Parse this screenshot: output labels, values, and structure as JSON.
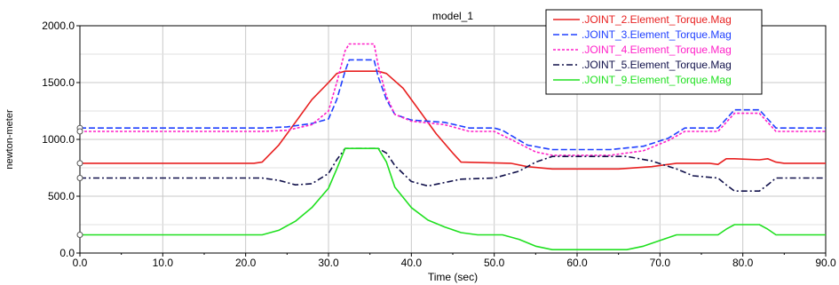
{
  "chart_data": {
    "type": "line",
    "title": "model_1",
    "xlabel": "Time (sec)",
    "ylabel": "newton-meter",
    "xlim": [
      0,
      90
    ],
    "ylim": [
      0,
      2000
    ],
    "x_ticks": [
      "0.0",
      "10.0",
      "20.0",
      "30.0",
      "40.0",
      "50.0",
      "60.0",
      "70.0",
      "80.0",
      "90.0"
    ],
    "y_ticks": [
      "0.0",
      "500.0",
      "1000.0",
      "1500.0",
      "2000.0"
    ],
    "grid": true,
    "legend_position": "top-right",
    "series": [
      {
        "name": ".JOINT_2.Element_Torque.Mag",
        "color": "#e82020",
        "dash": "solid",
        "points": [
          [
            0,
            790
          ],
          [
            21,
            790
          ],
          [
            22,
            800
          ],
          [
            24,
            950
          ],
          [
            26,
            1150
          ],
          [
            28,
            1350
          ],
          [
            30,
            1500
          ],
          [
            31,
            1580
          ],
          [
            32,
            1600
          ],
          [
            36,
            1600
          ],
          [
            37,
            1580
          ],
          [
            39,
            1450
          ],
          [
            41,
            1250
          ],
          [
            43,
            1050
          ],
          [
            45,
            880
          ],
          [
            46,
            800
          ],
          [
            52,
            790
          ],
          [
            54,
            760
          ],
          [
            57,
            740
          ],
          [
            65,
            740
          ],
          [
            69,
            760
          ],
          [
            72,
            790
          ],
          [
            76,
            790
          ],
          [
            77,
            780
          ],
          [
            78,
            830
          ],
          [
            79,
            830
          ],
          [
            82,
            820
          ],
          [
            83,
            830
          ],
          [
            84,
            800
          ],
          [
            85,
            790
          ],
          [
            90,
            790
          ]
        ]
      },
      {
        "name": ".JOINT_3.Element_Torque.Mag",
        "color": "#2040ff",
        "dash": "dashed",
        "points": [
          [
            0,
            1100
          ],
          [
            22,
            1100
          ],
          [
            25,
            1110
          ],
          [
            28,
            1140
          ],
          [
            30,
            1180
          ],
          [
            31,
            1350
          ],
          [
            32,
            1600
          ],
          [
            32.5,
            1700
          ],
          [
            35.5,
            1700
          ],
          [
            36,
            1550
          ],
          [
            37,
            1350
          ],
          [
            38,
            1220
          ],
          [
            40,
            1170
          ],
          [
            44,
            1150
          ],
          [
            47,
            1100
          ],
          [
            50,
            1100
          ],
          [
            51,
            1080
          ],
          [
            54,
            950
          ],
          [
            57,
            910
          ],
          [
            64,
            910
          ],
          [
            68,
            940
          ],
          [
            71,
            1010
          ],
          [
            73,
            1100
          ],
          [
            77,
            1100
          ],
          [
            78,
            1180
          ],
          [
            79,
            1260
          ],
          [
            82,
            1260
          ],
          [
            83,
            1180
          ],
          [
            84,
            1100
          ],
          [
            90,
            1100
          ]
        ]
      },
      {
        "name": ".JOINT_4.Element_Torque.Mag",
        "color": "#ff20c8",
        "dash": "dotted",
        "points": [
          [
            0,
            1070
          ],
          [
            22,
            1070
          ],
          [
            25,
            1080
          ],
          [
            28,
            1130
          ],
          [
            30,
            1250
          ],
          [
            31,
            1500
          ],
          [
            32,
            1780
          ],
          [
            32.5,
            1840
          ],
          [
            35.5,
            1840
          ],
          [
            36,
            1650
          ],
          [
            37,
            1380
          ],
          [
            38,
            1220
          ],
          [
            40,
            1160
          ],
          [
            44,
            1130
          ],
          [
            47,
            1070
          ],
          [
            50,
            1070
          ],
          [
            52,
            1000
          ],
          [
            55,
            890
          ],
          [
            57,
            860
          ],
          [
            64,
            860
          ],
          [
            68,
            900
          ],
          [
            71,
            990
          ],
          [
            73,
            1070
          ],
          [
            77,
            1070
          ],
          [
            78,
            1150
          ],
          [
            79,
            1230
          ],
          [
            82,
            1230
          ],
          [
            83,
            1150
          ],
          [
            84,
            1070
          ],
          [
            90,
            1070
          ]
        ]
      },
      {
        "name": ".JOINT_5.Element_Torque.Mag",
        "color": "#10104a",
        "dash": "dashdot",
        "points": [
          [
            0,
            660
          ],
          [
            22,
            660
          ],
          [
            24,
            640
          ],
          [
            26,
            600
          ],
          [
            28,
            610
          ],
          [
            30,
            700
          ],
          [
            31,
            820
          ],
          [
            32,
            920
          ],
          [
            36,
            920
          ],
          [
            37,
            880
          ],
          [
            38,
            770
          ],
          [
            40,
            630
          ],
          [
            42,
            590
          ],
          [
            44,
            620
          ],
          [
            46,
            650
          ],
          [
            50,
            660
          ],
          [
            53,
            720
          ],
          [
            55,
            800
          ],
          [
            57,
            850
          ],
          [
            66,
            850
          ],
          [
            69,
            810
          ],
          [
            72,
            740
          ],
          [
            74,
            680
          ],
          [
            77,
            660
          ],
          [
            78,
            600
          ],
          [
            79,
            545
          ],
          [
            82,
            545
          ],
          [
            83,
            600
          ],
          [
            84,
            660
          ],
          [
            90,
            660
          ]
        ]
      },
      {
        "name": ".JOINT_9.Element_Torque.Mag",
        "color": "#20e020",
        "dash": "solid",
        "points": [
          [
            0,
            160
          ],
          [
            22,
            160
          ],
          [
            24,
            200
          ],
          [
            26,
            280
          ],
          [
            28,
            400
          ],
          [
            30,
            570
          ],
          [
            31,
            740
          ],
          [
            32,
            920
          ],
          [
            36,
            920
          ],
          [
            37,
            800
          ],
          [
            38,
            580
          ],
          [
            40,
            400
          ],
          [
            42,
            290
          ],
          [
            44,
            230
          ],
          [
            46,
            180
          ],
          [
            48,
            160
          ],
          [
            51,
            160
          ],
          [
            53,
            120
          ],
          [
            55,
            60
          ],
          [
            57,
            30
          ],
          [
            66,
            30
          ],
          [
            68,
            60
          ],
          [
            70,
            110
          ],
          [
            72,
            160
          ],
          [
            77,
            160
          ],
          [
            78,
            210
          ],
          [
            79,
            250
          ],
          [
            82,
            250
          ],
          [
            83,
            210
          ],
          [
            84,
            160
          ],
          [
            90,
            160
          ]
        ]
      }
    ],
    "left_markers": [
      {
        "y": 1100,
        "color": "#2040ff"
      },
      {
        "y": 1070,
        "color": "#ff20c8"
      },
      {
        "y": 790,
        "color": "#e82020"
      },
      {
        "y": 660,
        "color": "#10104a"
      },
      {
        "y": 160,
        "color": "#20e020"
      }
    ]
  }
}
